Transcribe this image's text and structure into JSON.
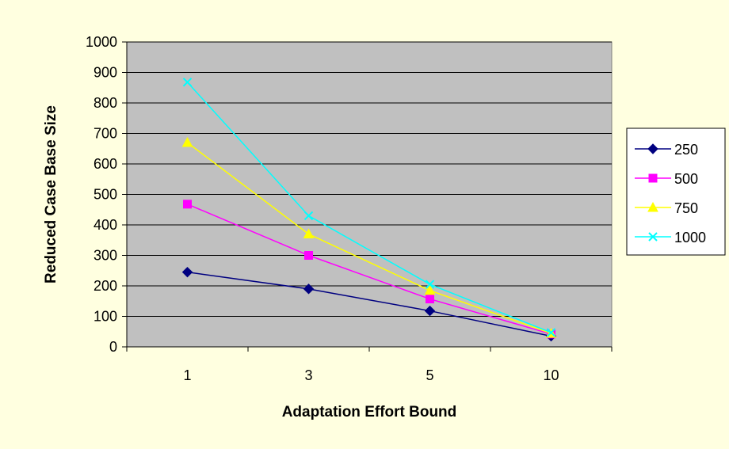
{
  "chart_data": {
    "type": "line",
    "title": "",
    "xlabel": "Adaptation Effort Bound",
    "ylabel": "Reduced Case Base Size",
    "categories": [
      "1",
      "3",
      "5",
      "10"
    ],
    "ylim": [
      0,
      1000
    ],
    "yticks": [
      "0",
      "100",
      "200",
      "300",
      "400",
      "500",
      "600",
      "700",
      "800",
      "900",
      "1000"
    ],
    "grid": true,
    "legend_position": "right",
    "series": [
      {
        "name": "250",
        "values": [
          245,
          190,
          118,
          35
        ],
        "color": "#000080",
        "marker": "diamond"
      },
      {
        "name": "500",
        "values": [
          468,
          300,
          157,
          42
        ],
        "color": "#ff00ff",
        "marker": "square"
      },
      {
        "name": "750",
        "values": [
          670,
          370,
          185,
          44
        ],
        "color": "#ffff00",
        "marker": "triangle"
      },
      {
        "name": "1000",
        "values": [
          868,
          430,
          205,
          47
        ],
        "color": "#00ffff",
        "marker": "x"
      }
    ],
    "plot_background": "#c0c0c0",
    "page_background": "#ffffe0"
  }
}
